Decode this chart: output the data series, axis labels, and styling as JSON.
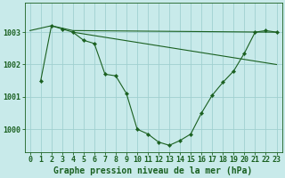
{
  "background_color": "#c8eaea",
  "grid_color": "#a0d0d0",
  "line_color": "#1a6020",
  "marker_color": "#1a6020",
  "xlabel": "Graphe pression niveau de la mer (hPa)",
  "xlabel_fontsize": 7,
  "tick_fontsize": 6,
  "xlim": [
    -0.5,
    23.5
  ],
  "ylim": [
    999.3,
    1003.9
  ],
  "yticks": [
    1000,
    1001,
    1002,
    1003
  ],
  "xticks": [
    0,
    1,
    2,
    3,
    4,
    5,
    6,
    7,
    8,
    9,
    10,
    11,
    12,
    13,
    14,
    15,
    16,
    17,
    18,
    19,
    20,
    21,
    22,
    23
  ],
  "series": [
    {
      "x": [
        1,
        2,
        3,
        4,
        5,
        6,
        7,
        8,
        9,
        10,
        11,
        12,
        13,
        14,
        15,
        16,
        17,
        18,
        19,
        20,
        21,
        22,
        23
      ],
      "y": [
        1001.5,
        1003.2,
        1003.1,
        1003.0,
        1002.75,
        1002.65,
        1001.7,
        1001.65,
        1001.1,
        1000.0,
        999.85,
        999.6,
        999.5,
        999.65,
        999.85,
        1000.5,
        1001.05,
        1001.45,
        1001.8,
        1002.35,
        1003.0,
        1003.05,
        1003.0
      ]
    },
    {
      "x": [
        0,
        2,
        4,
        23
      ],
      "y": [
        1003.05,
        1003.2,
        1003.05,
        1003.0
      ]
    },
    {
      "x": [
        4,
        23
      ],
      "y": [
        1003.0,
        1002.0
      ]
    }
  ]
}
